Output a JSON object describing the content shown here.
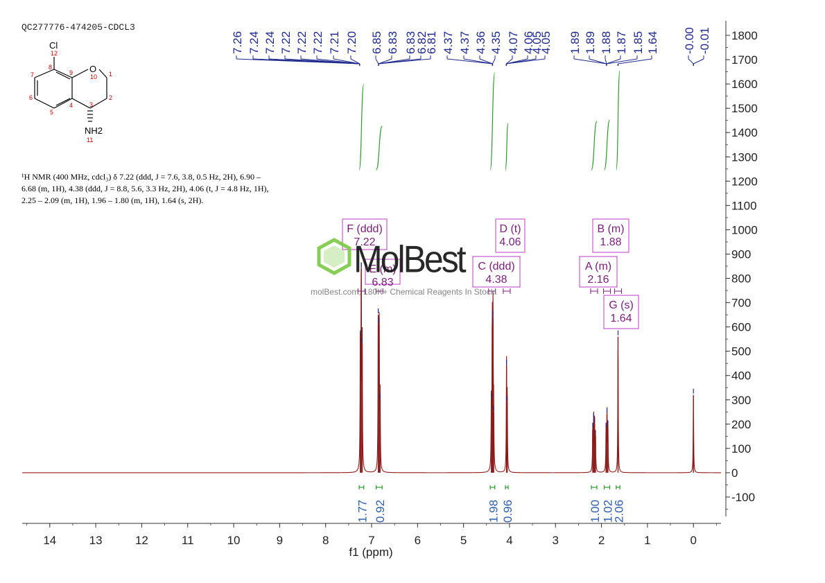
{
  "sample_id": "QC277776-474205-CDCL3",
  "nmr_description": "¹H NMR (400 MHz, cdcl₃) δ 7.22 (ddd, J = 7.6, 3.8, 0.5 Hz, 2H), 6.90 – 6.68 (m, 1H), 4.38 (ddd, J = 8.8, 5.6, 3.3 Hz, 2H), 4.06 (t, J = 4.8 Hz, 1H), 2.25 – 2.09 (m, 1H), 1.96 – 1.80 (m, 1H), 1.64 (s, 2H).",
  "molecule": {
    "atoms": [
      "Cl",
      "O",
      "NH2"
    ],
    "atom_numbers": [
      "12",
      "7",
      "8",
      "9",
      "10",
      "1",
      "6",
      "5",
      "4",
      "3",
      "2",
      "11"
    ]
  },
  "watermark": {
    "brand": "MolBest",
    "tagline": "molBest.com, 180K+ Chemical Reagents In Stock."
  },
  "colors": {
    "spectrum": "#8B1A1A",
    "peak_labels": "#1F2A8C",
    "integral_curve": "#2E9A2E",
    "integral_label": "#2E5DA8",
    "multiplet_box": "#C03AC0",
    "multiplet_text": "#7A1E7A",
    "axis": "#333333"
  },
  "chart_data": {
    "type": "line",
    "xlabel": "f1 (ppm)",
    "ylabel": "",
    "x_reversed": true,
    "xlim": [
      14.6,
      -0.6
    ],
    "ylim": [
      -180,
      1860
    ],
    "x_ticks": [
      14,
      13,
      12,
      11,
      10,
      9,
      8,
      7,
      6,
      5,
      4,
      3,
      2,
      1,
      0
    ],
    "y_ticks": [
      -100,
      0,
      100,
      200,
      300,
      400,
      500,
      600,
      700,
      800,
      900,
      1000,
      1100,
      1200,
      1300,
      1400,
      1500,
      1600,
      1700,
      1800
    ],
    "peaks": [
      {
        "ppm": 7.245,
        "height": 560
      },
      {
        "ppm": 7.225,
        "height": 840
      },
      {
        "ppm": 7.205,
        "height": 530
      },
      {
        "ppm": 6.855,
        "height": 650
      },
      {
        "ppm": 6.835,
        "height": 610
      },
      {
        "ppm": 6.815,
        "height": 300
      },
      {
        "ppm": 4.395,
        "height": 300
      },
      {
        "ppm": 4.375,
        "height": 610
      },
      {
        "ppm": 4.36,
        "height": 640
      },
      {
        "ppm": 4.345,
        "height": 250
      },
      {
        "ppm": 4.065,
        "height": 440
      },
      {
        "ppm": 4.05,
        "height": 290
      },
      {
        "ppm": 2.19,
        "height": 180
      },
      {
        "ppm": 2.17,
        "height": 220
      },
      {
        "ppm": 2.15,
        "height": 200
      },
      {
        "ppm": 2.13,
        "height": 150
      },
      {
        "ppm": 1.9,
        "height": 180
      },
      {
        "ppm": 1.88,
        "height": 240
      },
      {
        "ppm": 1.86,
        "height": 190
      },
      {
        "ppm": 1.64,
        "height": 560
      },
      {
        "ppm": 0.0,
        "height": 320
      }
    ],
    "peak_labels": [
      {
        "label": "7.26",
        "ppm": 7.26
      },
      {
        "label": "7.24",
        "ppm": 7.24
      },
      {
        "label": "7.24",
        "ppm": 7.235
      },
      {
        "label": "7.22",
        "ppm": 7.225
      },
      {
        "label": "7.22",
        "ppm": 7.22
      },
      {
        "label": "7.22",
        "ppm": 7.215
      },
      {
        "label": "7.21",
        "ppm": 7.21
      },
      {
        "label": "7.20",
        "ppm": 7.2
      },
      {
        "label": "6.85",
        "ppm": 6.85
      },
      {
        "label": "6.83",
        "ppm": 6.835
      },
      {
        "label": "6.83",
        "ppm": 6.83
      },
      {
        "label": "6.82",
        "ppm": 6.82
      },
      {
        "label": "6.81",
        "ppm": 6.81
      },
      {
        "label": "4.37",
        "ppm": 4.37
      },
      {
        "label": "4.37",
        "ppm": 4.368
      },
      {
        "label": "4.36",
        "ppm": 4.36
      },
      {
        "label": "4.35",
        "ppm": 4.35
      },
      {
        "label": "4.07",
        "ppm": 4.07
      },
      {
        "label": "4.06",
        "ppm": 4.06
      },
      {
        "label": "4.05",
        "ppm": 4.055
      },
      {
        "label": "4.05",
        "ppm": 4.05
      },
      {
        "label": "1.89",
        "ppm": 1.89
      },
      {
        "label": "1.89",
        "ppm": 1.888
      },
      {
        "label": "1.88",
        "ppm": 1.88
      },
      {
        "label": "1.87",
        "ppm": 1.87
      },
      {
        "label": "1.85",
        "ppm": 1.85
      },
      {
        "label": "1.64",
        "ppm": 1.64
      },
      {
        "label": "-0.00",
        "ppm": -0.001
      },
      {
        "label": "-0.01",
        "ppm": -0.01
      }
    ],
    "multiplets": [
      {
        "letter": "F",
        "type": "ddd",
        "shift": "7.22",
        "ppm": 7.22
      },
      {
        "letter": "E",
        "type": "m",
        "shift": "6.83",
        "ppm": 6.83
      },
      {
        "letter": "D",
        "type": "t",
        "shift": "4.06",
        "ppm": 4.06
      },
      {
        "letter": "C",
        "type": "ddd",
        "shift": "4.38",
        "ppm": 4.38
      },
      {
        "letter": "B",
        "type": "m",
        "shift": "1.88",
        "ppm": 1.88
      },
      {
        "letter": "A",
        "type": "m",
        "shift": "2.16",
        "ppm": 2.16
      },
      {
        "letter": "G",
        "type": "s",
        "shift": "1.64",
        "ppm": 1.64
      }
    ],
    "integrals": [
      {
        "value": "1.77",
        "from": 7.27,
        "to": 7.17
      },
      {
        "value": "0.92",
        "from": 6.9,
        "to": 6.77
      },
      {
        "value": "1.98",
        "from": 4.42,
        "to": 4.32
      },
      {
        "value": "0.96",
        "from": 4.09,
        "to": 4.03
      },
      {
        "value": "1.00",
        "from": 2.22,
        "to": 2.1
      },
      {
        "value": "1.02",
        "from": 1.94,
        "to": 1.82
      },
      {
        "value": "2.06",
        "from": 1.68,
        "to": 1.6
      }
    ]
  }
}
